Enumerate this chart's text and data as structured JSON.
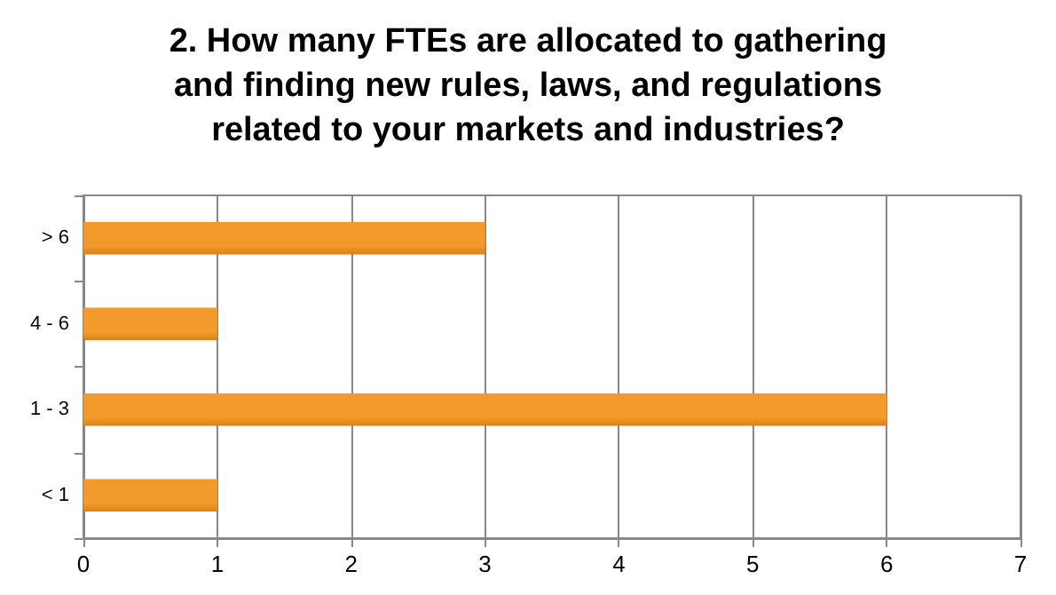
{
  "chart_data": {
    "type": "bar",
    "orientation": "horizontal",
    "title": "2. How many FTEs are allocated to gathering\nand finding new rules, laws, and regulations\nrelated to your markets and industries?",
    "categories": [
      "> 6",
      "4 - 6",
      "1 - 3",
      "< 1"
    ],
    "values": [
      3,
      1,
      6,
      1
    ],
    "color": "#f39a2c",
    "xlim": [
      0,
      7
    ],
    "xticks": [
      0,
      1,
      2,
      3,
      4,
      5,
      6,
      7
    ],
    "grid": "x"
  }
}
